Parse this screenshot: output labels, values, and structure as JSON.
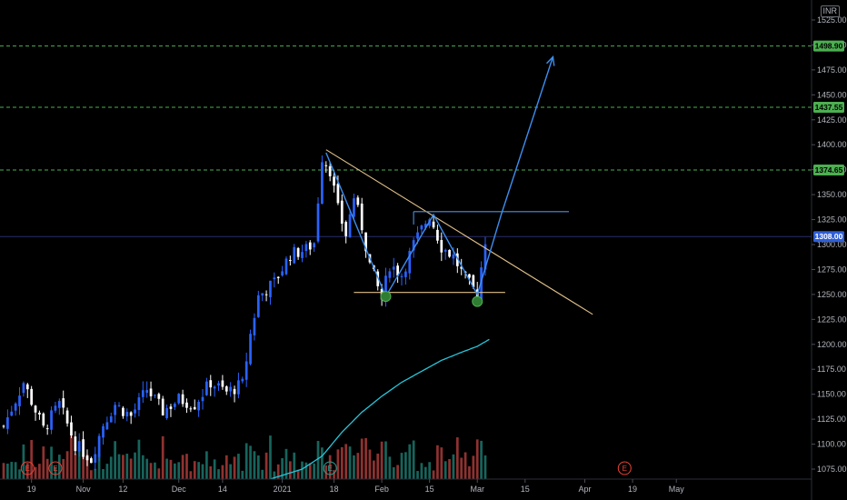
{
  "chart_data": {
    "type": "candlestick",
    "currency": "INR",
    "ylim": [
      1065,
      1545
    ],
    "y_ticks": [
      1075,
      1100,
      1125,
      1150,
      1175,
      1200,
      1225,
      1250,
      1275,
      1300,
      1325,
      1350,
      1375,
      1400,
      1425,
      1450,
      1475,
      1500,
      1525
    ],
    "y_tick_labels": [
      "1075.00",
      "1100.00",
      "1125.00",
      "1150.00",
      "1175.00",
      "1200.00",
      "1225.00",
      "1250.00",
      "1275.00",
      "1300.00",
      "1325.00",
      "1350.00",
      "1375.00",
      "1400.00",
      "1425.00",
      "1450.00",
      "1475.00",
      "1500.00",
      "1525.00"
    ],
    "xlim": [
      0,
      200
    ],
    "x_ticks": [
      {
        "x": 7,
        "label": "19"
      },
      {
        "x": 20,
        "label": "Nov"
      },
      {
        "x": 30,
        "label": "12"
      },
      {
        "x": 44,
        "label": "Dec"
      },
      {
        "x": 55,
        "label": "14"
      },
      {
        "x": 70,
        "label": "2021"
      },
      {
        "x": 83,
        "label": "18"
      },
      {
        "x": 95,
        "label": "Feb"
      },
      {
        "x": 107,
        "label": "15"
      },
      {
        "x": 119,
        "label": "Mar"
      },
      {
        "x": 131,
        "label": "15"
      },
      {
        "x": 146,
        "label": "Apr"
      },
      {
        "x": 158,
        "label": "19"
      },
      {
        "x": 169,
        "label": "May"
      }
    ],
    "price_levels": [
      {
        "value": 1308.0,
        "label": "1308.00",
        "style": "solid",
        "color": "#2a2e6e",
        "badge": "#2f5fd8",
        "text": "light"
      },
      {
        "value": 1374.65,
        "label": "1374.65",
        "style": "dashed",
        "color": "#4caf50",
        "badge": "#4caf50"
      },
      {
        "value": 1437.55,
        "label": "1437.55",
        "style": "dashed",
        "color": "#4caf50",
        "badge": "#4caf50"
      },
      {
        "value": 1498.9,
        "label": "1498.90",
        "style": "dashed",
        "color": "#4caf50",
        "badge": "#4caf50"
      }
    ],
    "close_anchors": [
      [
        0,
        1118
      ],
      [
        5,
        1162
      ],
      [
        10,
        1115
      ],
      [
        14,
        1140
      ],
      [
        18,
        1100
      ],
      [
        22,
        1085
      ],
      [
        25,
        1120
      ],
      [
        28,
        1140
      ],
      [
        32,
        1128
      ],
      [
        36,
        1155
      ],
      [
        40,
        1133
      ],
      [
        44,
        1145
      ],
      [
        48,
        1140
      ],
      [
        52,
        1162
      ],
      [
        56,
        1152
      ],
      [
        60,
        1160
      ],
      [
        62,
        1210
      ],
      [
        64,
        1248
      ],
      [
        68,
        1262
      ],
      [
        72,
        1290
      ],
      [
        76,
        1295
      ],
      [
        78,
        1302
      ],
      [
        80,
        1388
      ],
      [
        82,
        1375
      ],
      [
        84,
        1335
      ],
      [
        86,
        1310
      ],
      [
        88,
        1348
      ],
      [
        90,
        1318
      ],
      [
        92,
        1280
      ],
      [
        95,
        1245
      ],
      [
        97,
        1280
      ],
      [
        100,
        1270
      ],
      [
        103,
        1300
      ],
      [
        107,
        1330
      ],
      [
        110,
        1298
      ],
      [
        113,
        1288
      ],
      [
        116,
        1265
      ],
      [
        119,
        1250
      ],
      [
        121,
        1305
      ]
    ],
    "ma_anchors": [
      [
        67,
        1065
      ],
      [
        75,
        1075
      ],
      [
        80,
        1088
      ],
      [
        85,
        1112
      ],
      [
        90,
        1132
      ],
      [
        95,
        1148
      ],
      [
        100,
        1162
      ],
      [
        105,
        1173
      ],
      [
        110,
        1184
      ],
      [
        115,
        1192
      ],
      [
        119,
        1198
      ],
      [
        122,
        1205
      ]
    ],
    "volume": {
      "base_ratio": 0.2,
      "bull_color": "#26a69a",
      "bear_color": "#ef5350"
    },
    "annotations": {
      "down_trendline": {
        "points": [
          [
            81,
            1395
          ],
          [
            148,
            1230
          ]
        ],
        "color": "#e0c08a"
      },
      "neckline_support": {
        "points": [
          [
            88,
            1252
          ],
          [
            126,
            1252
          ]
        ],
        "color": "#e0c08a"
      },
      "resistance_box_top": {
        "points": [
          [
            103,
            1333
          ],
          [
            142,
            1333
          ]
        ],
        "color": "#4a90e2"
      },
      "resistance_box_side": {
        "points": [
          [
            103,
            1320
          ],
          [
            103,
            1333
          ]
        ],
        "color": "#4a90e2"
      },
      "w_pattern": {
        "points": [
          [
            81,
            1392
          ],
          [
            96,
            1248
          ],
          [
            108,
            1330
          ],
          [
            119,
            1250
          ],
          [
            125,
            1330
          ],
          [
            138,
            1488
          ]
        ],
        "color": "#3d8ef0"
      },
      "bottom_markers": [
        [
          96,
          1248
        ],
        [
          119,
          1243
        ]
      ]
    },
    "events": [
      {
        "x": 6,
        "label": "E",
        "color": "#f44336"
      },
      {
        "x": 13,
        "label": "E",
        "color": "#f44336"
      },
      {
        "x": 82,
        "label": "E",
        "color": "#26a69a"
      },
      {
        "x": 156,
        "label": "E",
        "color": "#f44336"
      }
    ]
  }
}
